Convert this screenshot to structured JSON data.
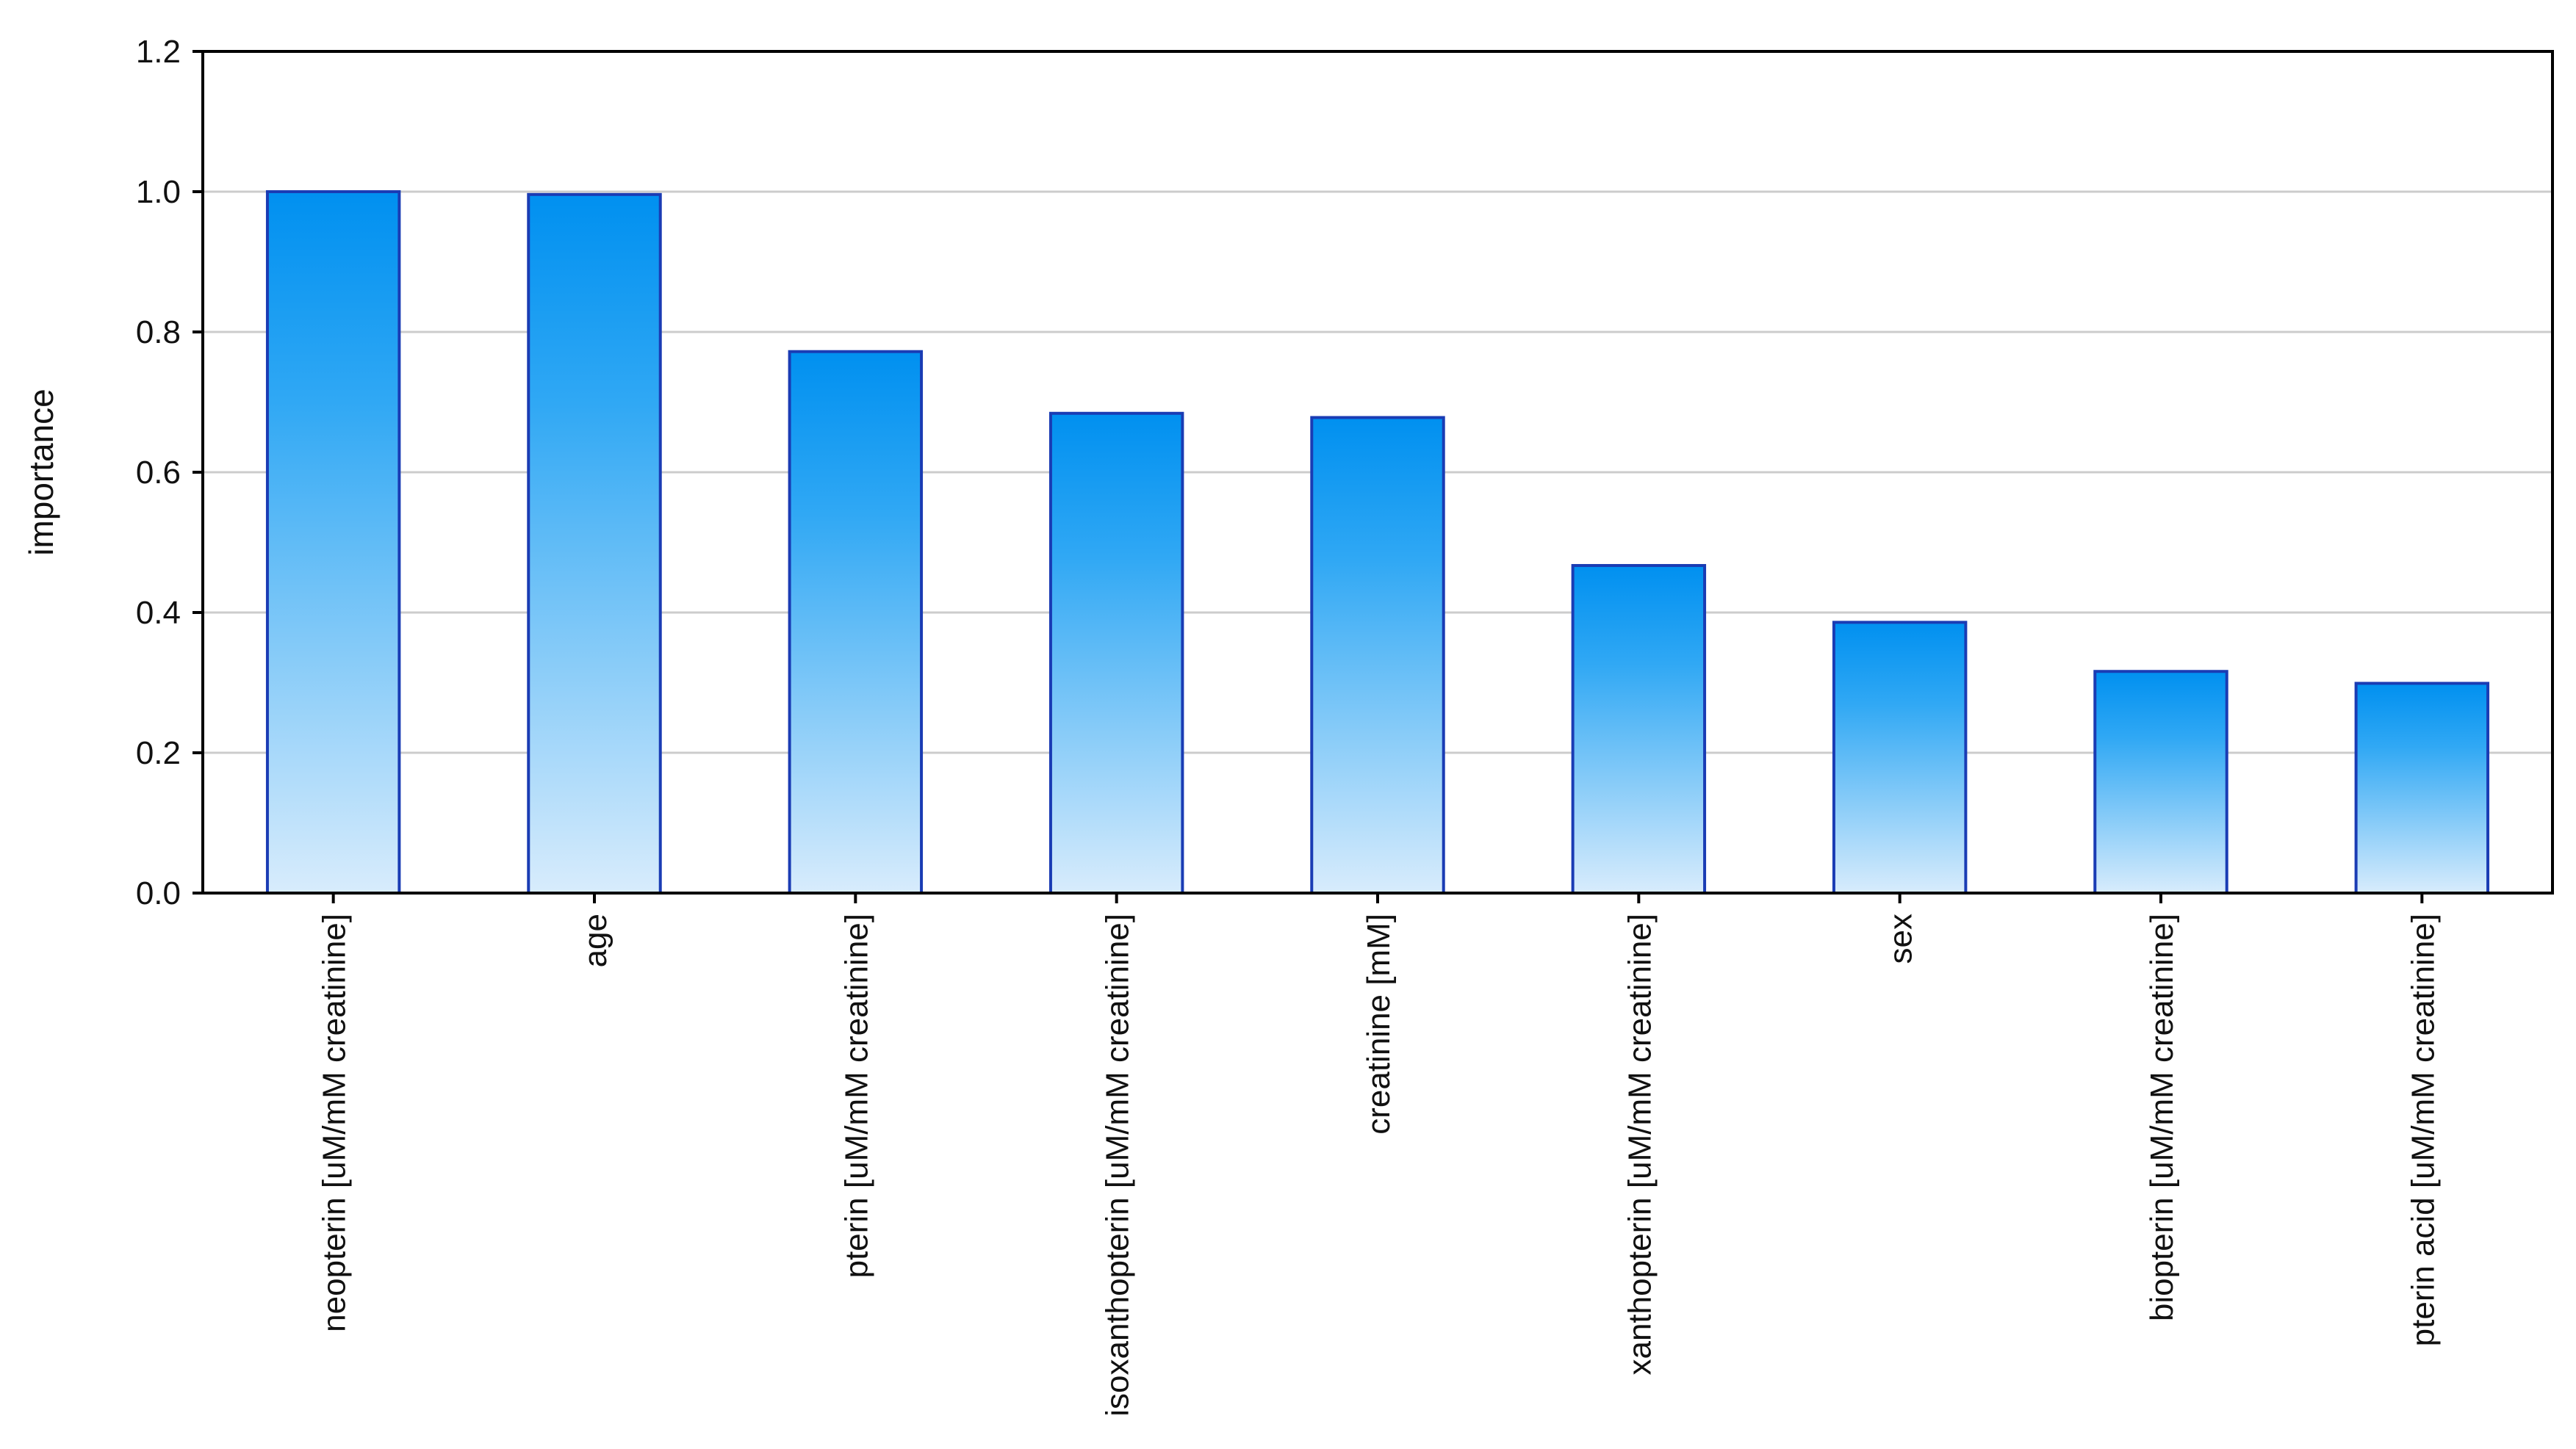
{
  "chart_data": {
    "type": "bar",
    "title": "",
    "xlabel": "",
    "ylabel": "importance",
    "categories": [
      "neopterin [uM/mM creatinine]",
      "age",
      "pterin [uM/mM creatinine]",
      "isoxanthopterin [uM/mM creatinine]",
      "creatinine [mM]",
      "xanthopterin [uM/mM creatinine]",
      "sex",
      "biopterin [uM/mM creatinine]",
      "pterin acid [uM/mM creatinine]"
    ],
    "values": [
      1.0,
      0.996,
      0.772,
      0.684,
      0.678,
      0.467,
      0.386,
      0.316,
      0.299
    ],
    "ylim": [
      0,
      1.2
    ],
    "yticks": [
      "0.0",
      "0.2",
      "0.4",
      "0.6",
      "0.8",
      "1.0",
      "1.2"
    ],
    "grid": true,
    "legend": "none",
    "colors": {
      "bar_top": "#0090f0",
      "bar_bottom": "#d8ecfc",
      "bar_border": "#1a3cb4",
      "grid": "#cccccc",
      "axis": "#000000"
    }
  }
}
